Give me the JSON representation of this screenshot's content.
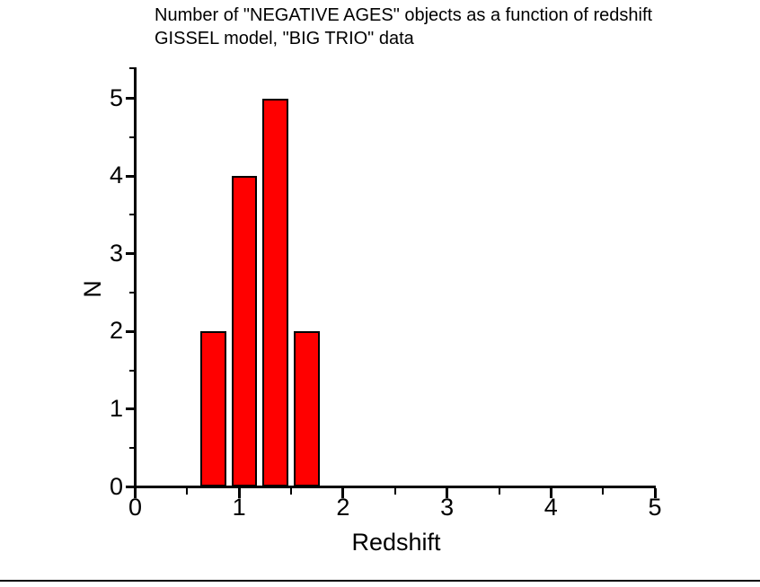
{
  "title": {
    "line1": "Number of \"NEGATIVE AGES\" objects as a function of redshift",
    "line2": "GISSEL model, \"BIG TRIO\" data"
  },
  "chart_data": {
    "type": "bar",
    "title": "Number of \"NEGATIVE AGES\" objects as a function of redshift / GISSEL model, \"BIG TRIO\" data",
    "xlabel": "Redshift",
    "ylabel": "N",
    "xlim": [
      0,
      5
    ],
    "ylim": [
      0,
      5.4
    ],
    "x_major_ticks": [
      0,
      1,
      2,
      3,
      4,
      5
    ],
    "x_minor_ticks": [
      0.5,
      1.5,
      2.5,
      3.5,
      4.5
    ],
    "y_major_ticks": [
      0,
      1,
      2,
      3,
      4,
      5
    ],
    "y_minor_ticks": [
      0.5,
      1.5,
      2.5,
      3.5,
      4.5
    ],
    "grid": false,
    "legend": false,
    "bar_color": "#ff0000",
    "bar_border_color": "#000000",
    "bin_width": 0.25,
    "bars": [
      {
        "center": 0.75,
        "value": 2
      },
      {
        "center": 1.05,
        "value": 4
      },
      {
        "center": 1.35,
        "value": 5
      },
      {
        "center": 1.65,
        "value": 2
      }
    ]
  }
}
